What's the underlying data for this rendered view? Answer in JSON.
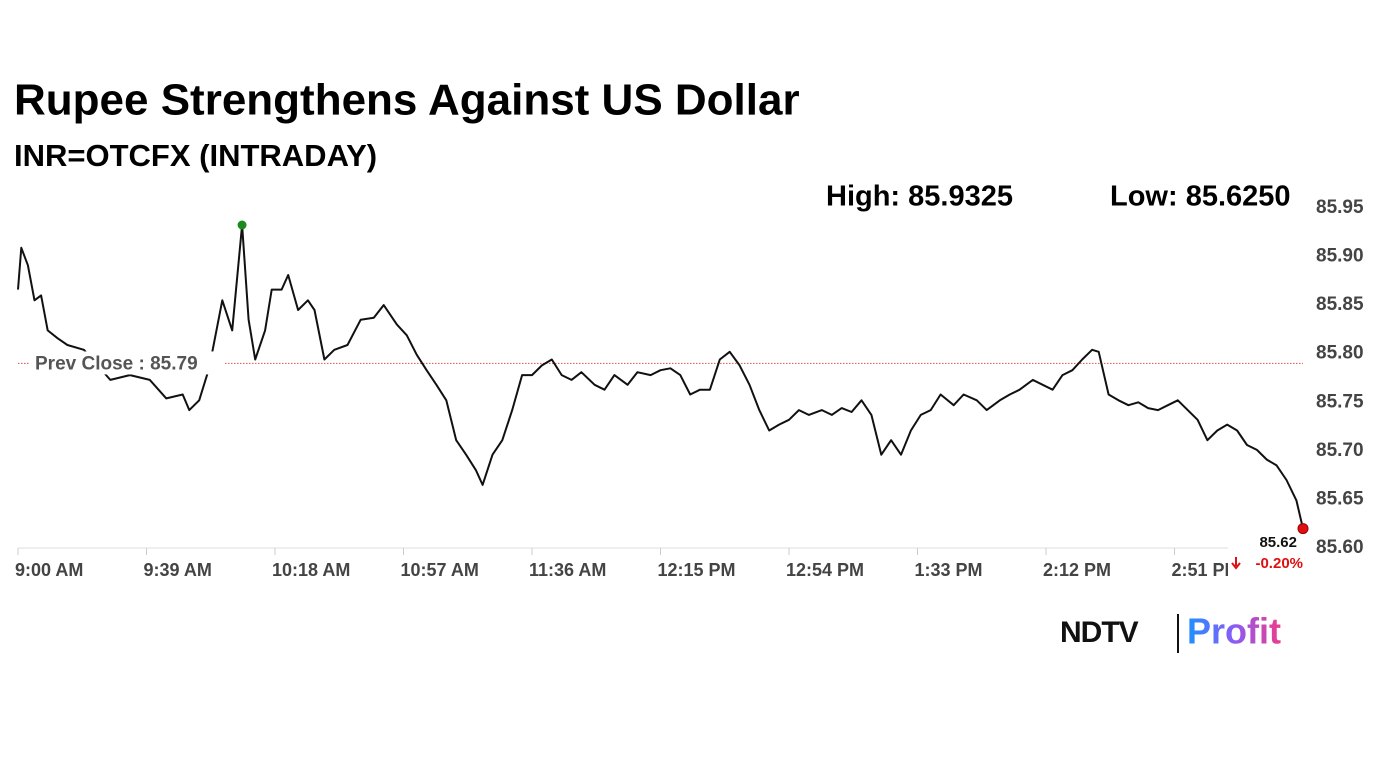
{
  "chart_data": {
    "type": "line",
    "title": "Rupee Strengthens Against US Dollar",
    "subtitle": "INR=OTCFX (INTRADAY)",
    "high": {
      "x": "10:08 AM",
      "value": 85.9325,
      "label": "High: 85.9325",
      "color": "#1a8a1a"
    },
    "low": {
      "label": "Low: 85.6250"
    },
    "prev_close": {
      "value": 85.79,
      "label": "Prev Close : 85.79",
      "color": "#d9534f"
    },
    "last": {
      "label": "85.62",
      "change": "-0.20%",
      "color": "#e01010"
    },
    "x": [
      "9:00 AM",
      "9:01 AM",
      "9:03 AM",
      "9:05 AM",
      "9:07 AM",
      "9:09 AM",
      "9:12 AM",
      "9:15 AM",
      "9:20 AM",
      "9:28 AM",
      "9:34 AM",
      "9:40 AM",
      "9:45 AM",
      "9:50 AM",
      "9:52 AM",
      "9:55 AM",
      "9:58 AM",
      "10:02 AM",
      "10:05 AM",
      "10:08 AM",
      "10:10 AM",
      "10:12 AM",
      "10:15 AM",
      "10:17 AM",
      "10:20 AM",
      "10:22 AM",
      "10:25 AM",
      "10:28 AM",
      "10:30 AM",
      "10:33 AM",
      "10:36 AM",
      "10:40 AM",
      "10:44 AM",
      "10:48 AM",
      "10:51 AM",
      "10:55 AM",
      "10:58 AM",
      "11:01 AM",
      "11:04 AM",
      "11:07 AM",
      "11:10 AM",
      "11:13 AM",
      "11:16 AM",
      "11:19 AM",
      "11:21 AM",
      "11:24 AM",
      "11:27 AM",
      "11:30 AM",
      "11:33 AM",
      "11:36 AM",
      "11:39 AM",
      "11:42 AM",
      "11:45 AM",
      "11:48 AM",
      "11:51 AM",
      "11:55 AM",
      "11:58 AM",
      "12:01 PM",
      "12:05 PM",
      "12:08 PM",
      "12:12 PM",
      "12:15 PM",
      "12:18 PM",
      "12:21 PM",
      "12:24 PM",
      "12:27 PM",
      "12:30 PM",
      "12:33 PM",
      "12:36 PM",
      "12:39 PM",
      "12:42 PM",
      "12:45 PM",
      "12:48 PM",
      "12:51 PM",
      "12:54 PM",
      "12:57 PM",
      "1:00 PM",
      "1:04 PM",
      "1:07 PM",
      "1:10 PM",
      "1:13 PM",
      "1:16 PM",
      "1:19 PM",
      "1:22 PM",
      "1:25 PM",
      "1:28 PM",
      "1:31 PM",
      "1:34 PM",
      "1:37 PM",
      "1:40 PM",
      "1:44 PM",
      "1:47 PM",
      "1:51 PM",
      "1:54 PM",
      "1:58 PM",
      "2:01 PM",
      "2:04 PM",
      "2:08 PM",
      "2:11 PM",
      "2:14 PM",
      "2:17 PM",
      "2:20 PM",
      "2:23 PM",
      "2:26 PM",
      "2:28 PM",
      "2:31 PM",
      "2:34 PM",
      "2:37 PM",
      "2:40 PM",
      "2:43 PM",
      "2:46 PM",
      "2:49 PM",
      "2:52 PM",
      "2:55 PM",
      "2:58 PM",
      "3:01 PM",
      "3:04 PM",
      "3:07 PM",
      "3:10 PM",
      "3:13 PM",
      "3:16 PM",
      "3:19 PM",
      "3:22 PM",
      "3:25 PM",
      "3:28 PM",
      "3:30 PM"
    ],
    "series": [
      {
        "name": "INR=OTCFX",
        "color": "#111111",
        "values": [
          85.866,
          85.909,
          85.891,
          85.855,
          85.86,
          85.824,
          85.816,
          85.809,
          85.804,
          85.773,
          85.778,
          85.773,
          85.754,
          85.758,
          85.742,
          85.752,
          85.785,
          85.855,
          85.824,
          85.9325,
          85.835,
          85.794,
          85.824,
          85.866,
          85.866,
          85.881,
          85.845,
          85.855,
          85.845,
          85.794,
          85.804,
          85.809,
          85.835,
          85.837,
          85.85,
          85.83,
          85.819,
          85.799,
          85.783,
          85.768,
          85.752,
          85.711,
          85.696,
          85.68,
          85.665,
          85.696,
          85.711,
          85.742,
          85.778,
          85.778,
          85.788,
          85.794,
          85.778,
          85.773,
          85.781,
          85.768,
          85.763,
          85.778,
          85.768,
          85.781,
          85.778,
          85.783,
          85.785,
          85.778,
          85.758,
          85.763,
          85.763,
          85.794,
          85.802,
          85.788,
          85.768,
          85.742,
          85.721,
          85.727,
          85.732,
          85.742,
          85.737,
          85.742,
          85.737,
          85.744,
          85.74,
          85.752,
          85.737,
          85.696,
          85.711,
          85.696,
          85.721,
          85.737,
          85.742,
          85.758,
          85.747,
          85.758,
          85.752,
          85.742,
          85.752,
          85.758,
          85.763,
          85.773,
          85.768,
          85.763,
          85.778,
          85.783,
          85.794,
          85.804,
          85.802,
          85.758,
          85.752,
          85.747,
          85.75,
          85.744,
          85.742,
          85.747,
          85.752,
          85.742,
          85.732,
          85.711,
          85.721,
          85.727,
          85.721,
          85.706,
          85.701,
          85.691,
          85.685,
          85.67,
          85.649,
          85.62
        ]
      }
    ],
    "xlim": [
      "9:00 AM",
      "3:30 PM"
    ],
    "xticks": [
      "9:00 AM",
      "9:39 AM",
      "10:18 AM",
      "10:57 AM",
      "11:36 AM",
      "12:15 PM",
      "12:54 PM",
      "1:33 PM",
      "2:12 PM",
      "2:51 PM"
    ],
    "ylim": [
      85.6,
      85.95
    ],
    "yticks": [
      {
        "value": 85.6,
        "label": "85.60"
      },
      {
        "value": 85.65,
        "label": "85.65"
      },
      {
        "value": 85.7,
        "label": "85.70"
      },
      {
        "value": 85.75,
        "label": "85.75"
      },
      {
        "value": 85.8,
        "label": "85.80"
      },
      {
        "value": 85.85,
        "label": "85.85"
      },
      {
        "value": 85.9,
        "label": "85.90"
      },
      {
        "value": 85.95,
        "label": "85.95"
      }
    ],
    "logo": {
      "brand": "NDTV",
      "product": "Profit"
    }
  }
}
